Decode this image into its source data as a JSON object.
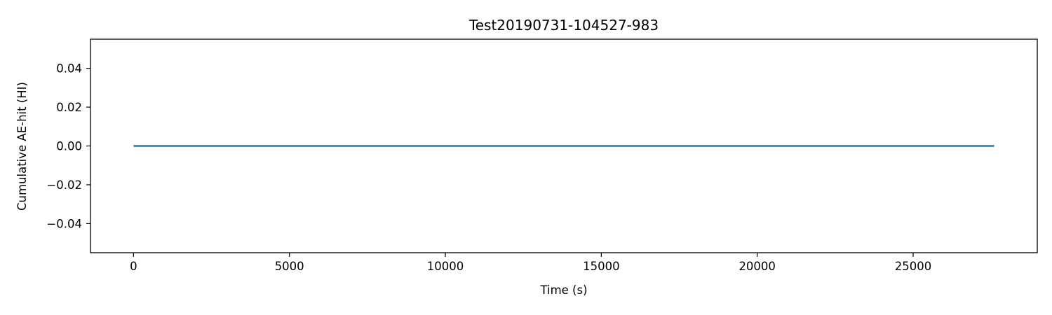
{
  "chart_data": {
    "type": "line",
    "title": "Test20190731-104527-983",
    "xlabel": "Time (s)",
    "ylabel": "Cumulative AE-hit (HI)",
    "xlim": [
      -1380,
      28980
    ],
    "ylim": [
      -0.055,
      0.055
    ],
    "xticks": [
      0,
      5000,
      10000,
      15000,
      20000,
      25000
    ],
    "xtick_labels": [
      "0",
      "5000",
      "10000",
      "15000",
      "20000",
      "25000"
    ],
    "yticks": [
      0.04,
      0.02,
      0.0,
      -0.02,
      -0.04
    ],
    "ytick_labels": [
      "0.04",
      "0.02",
      "0.00",
      "−0.02",
      "−0.04"
    ],
    "grid": false,
    "series": [
      {
        "color": "#1f77b4",
        "x": [
          0,
          27600
        ],
        "y": [
          0,
          0
        ]
      }
    ]
  }
}
